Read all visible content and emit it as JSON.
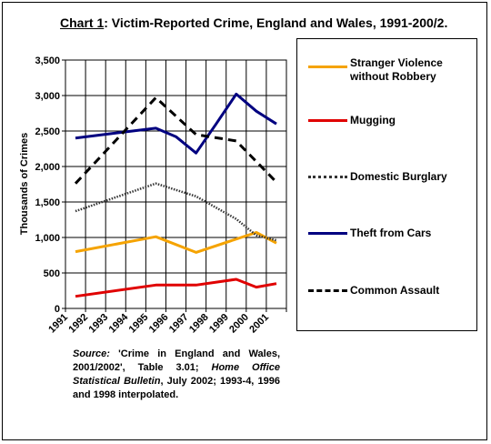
{
  "chart_data": {
    "type": "line",
    "title_prefix": "Chart 1",
    "title_rest": ": Victim-Reported Crime, England and Wales, 1991-200/2.",
    "ylabel": "Thousands of Crimes",
    "ylim": [
      0,
      3500
    ],
    "yticks": [
      "0",
      "500",
      "1,000",
      "1,500",
      "2,000",
      "2,500",
      "3,000",
      "3,500"
    ],
    "ytick_values": [
      0,
      500,
      1000,
      1500,
      2000,
      2500,
      3000,
      3500
    ],
    "x_labels": [
      "1991",
      "1992",
      "1993",
      "1994",
      "1995",
      "1996",
      "1997",
      "1998",
      "1999",
      "2000",
      "2001"
    ],
    "x": [
      1991,
      1992,
      1993,
      1994,
      1995,
      1996,
      1997,
      1998,
      1999,
      2000,
      2001
    ],
    "xlim": [
      1991,
      2002
    ],
    "grid": true,
    "series": [
      {
        "name": "Stranger Violence without Robbery",
        "color": "#f5a300",
        "dash": "solid",
        "points": [
          [
            1991.5,
            800
          ],
          [
            1995.5,
            1010
          ],
          [
            1997.5,
            790
          ],
          [
            2000.5,
            1070
          ],
          [
            2001.5,
            920
          ]
        ]
      },
      {
        "name": "Mugging",
        "color": "#e00000",
        "dash": "solid",
        "points": [
          [
            1991.5,
            170
          ],
          [
            1995.5,
            330
          ],
          [
            1997.5,
            330
          ],
          [
            1999.5,
            410
          ],
          [
            2000.5,
            300
          ],
          [
            2001.5,
            350
          ]
        ]
      },
      {
        "name": "Domestic Burglary",
        "color": "#333333",
        "dash": "dotted",
        "points": [
          [
            1991.5,
            1370
          ],
          [
            1995.5,
            1760
          ],
          [
            1997.5,
            1580
          ],
          [
            1999.5,
            1260
          ],
          [
            2000.5,
            1030
          ],
          [
            2001.5,
            960
          ]
        ]
      },
      {
        "name": "Theft from Cars",
        "color": "#000080",
        "dash": "solid",
        "points": [
          [
            1991.5,
            2400
          ],
          [
            1993.5,
            2470
          ],
          [
            1995.5,
            2540
          ],
          [
            1996.5,
            2420
          ],
          [
            1997.5,
            2190
          ],
          [
            1998.5,
            2600
          ],
          [
            1999.5,
            3020
          ],
          [
            2000.5,
            2780
          ],
          [
            2001.5,
            2600
          ]
        ]
      },
      {
        "name": "Common Assault",
        "color": "#000000",
        "dash": "dashed",
        "points": [
          [
            1991.5,
            1760
          ],
          [
            1995.5,
            2970
          ],
          [
            1997.5,
            2450
          ],
          [
            1999.5,
            2360
          ],
          [
            2001.5,
            1780
          ]
        ]
      }
    ],
    "legend_position": "right"
  },
  "source": {
    "label": "Source:",
    "text1": " 'Crime in England and Wales, 2001/2002', Table 3.01; ",
    "italic": "Home Office Statistical Bulletin",
    "text2": ", July 2002; 1993-4, 1996 and 1998 interpolated."
  }
}
